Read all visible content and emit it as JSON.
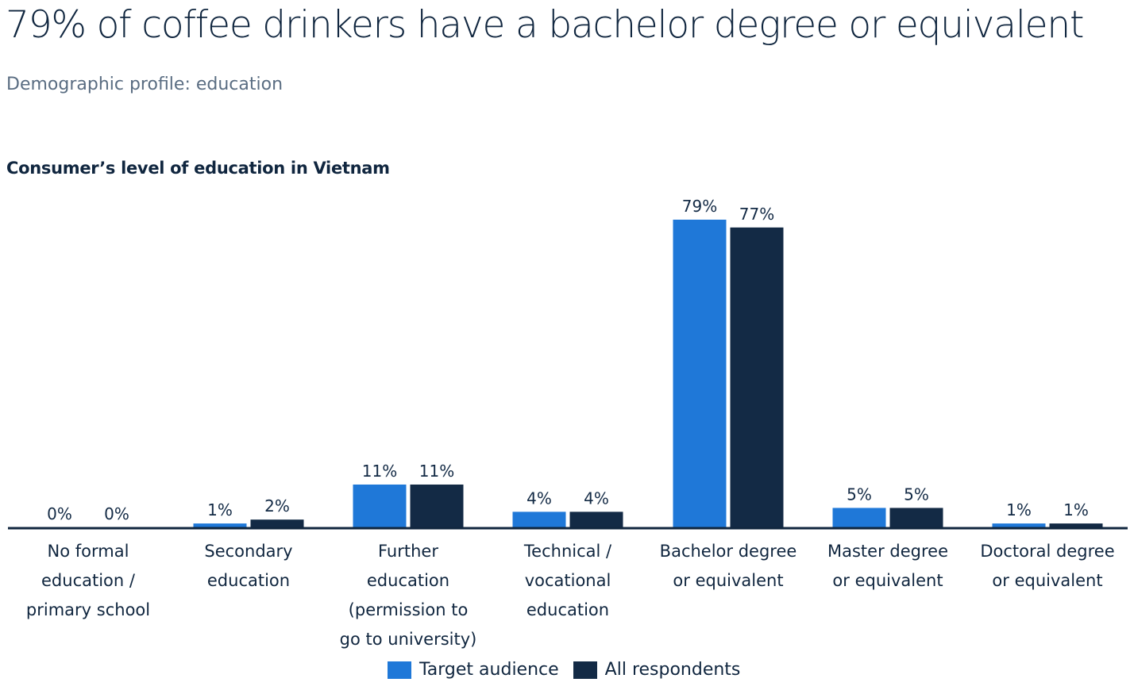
{
  "headline": "79% of coffee drinkers have a bachelor degree or equivalent",
  "subheadline": "Demographic profile: education",
  "chart_data": {
    "type": "bar",
    "title": "Consumer’s level of education in Vietnam",
    "xlabel": "",
    "ylabel": "",
    "ylim": [
      0,
      79
    ],
    "grid": false,
    "legend_position": "bottom-center",
    "unit": "%",
    "categories": [
      [
        "No formal",
        "education /",
        "primary school"
      ],
      [
        "Secondary",
        "education"
      ],
      [
        "Further",
        "education",
        "(permission to",
        "go to university)"
      ],
      [
        "Technical /",
        "vocational",
        "education"
      ],
      [
        "Bachelor degree",
        "or equivalent"
      ],
      [
        "Master degree",
        "or equivalent"
      ],
      [
        "Doctoral degree",
        "or equivalent"
      ]
    ],
    "series": [
      {
        "name": "Target audience",
        "color": "#1f78d8",
        "values": [
          0,
          1,
          11,
          4,
          79,
          5,
          1
        ],
        "labels": [
          "0%",
          "1%",
          "11%",
          "4%",
          "79%",
          "5%",
          "1%"
        ]
      },
      {
        "name": "All respondents",
        "color": "#132a45",
        "values": [
          0,
          2,
          11,
          4,
          77,
          5,
          1
        ],
        "labels": [
          "0%",
          "2%",
          "11%",
          "4%",
          "77%",
          "5%",
          "1%"
        ]
      }
    ]
  }
}
